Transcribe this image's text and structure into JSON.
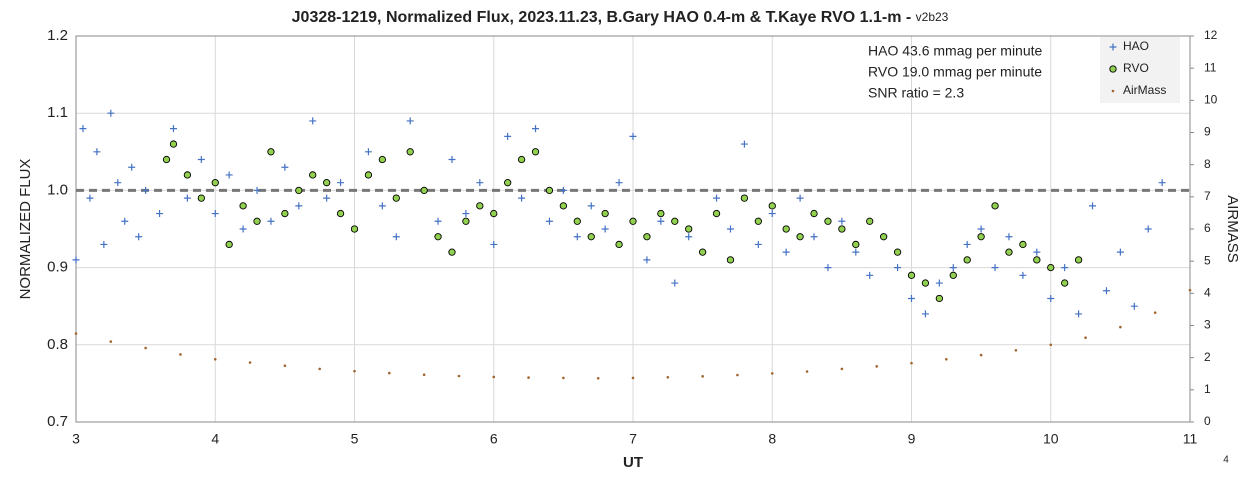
{
  "chart_data": {
    "type": "scatter",
    "title": "J0328-1219, Normalized Flux, 2023.11.23, B.Gary HAO 0.4-m & T.Kaye RVO 1.1-m - ",
    "version": "v2b23",
    "xlabel": "UT",
    "ylabel": "NORMALIZED FLUX",
    "y2label": "AIRMASS",
    "annotations": [
      "HAO 43.6 mmag per minute",
      "RVO 19.0 mmag per minute",
      "SNR ratio = 2.3"
    ],
    "page_label": "4",
    "xlim": [
      3,
      11
    ],
    "xticks": [
      3,
      4,
      5,
      6,
      7,
      8,
      9,
      10,
      11
    ],
    "ylim": [
      0.7,
      1.2
    ],
    "yticks": [
      0.7,
      0.8,
      0.9,
      {
        "value": 1,
        "label": "1.0"
      },
      1.1,
      1.2
    ],
    "y2lim": [
      0,
      12
    ],
    "y2ticks": [
      0,
      1,
      2,
      3,
      4,
      5,
      6,
      7,
      8,
      9,
      10,
      11,
      12
    ],
    "grid": true,
    "reference_line": 1,
    "legend": "upper right",
    "series": [
      {
        "name": "HAO",
        "color": "#4472c4",
        "marker": "plus",
        "x": [
          3.0,
          3.05,
          3.1,
          3.15,
          3.2,
          3.25,
          3.3,
          3.35,
          3.4,
          3.45,
          3.5,
          3.6,
          3.7,
          3.8,
          3.9,
          4.0,
          4.1,
          4.2,
          4.3,
          4.4,
          4.5,
          4.6,
          4.7,
          4.8,
          4.9,
          5.0,
          5.1,
          5.2,
          5.3,
          5.4,
          5.5,
          5.6,
          5.7,
          5.8,
          5.9,
          6.0,
          6.1,
          6.2,
          6.3,
          6.4,
          6.5,
          6.6,
          6.7,
          6.8,
          6.9,
          7.0,
          7.1,
          7.2,
          7.3,
          7.4,
          7.5,
          7.6,
          7.7,
          7.8,
          7.9,
          8.0,
          8.1,
          8.2,
          8.3,
          8.4,
          8.5,
          8.6,
          8.7,
          8.8,
          8.9,
          9.0,
          9.1,
          9.2,
          9.3,
          9.4,
          9.5,
          9.6,
          9.7,
          9.8,
          9.9,
          10.0,
          10.1,
          10.2,
          10.3,
          10.4,
          10.5,
          10.6,
          10.7,
          10.8
        ],
        "values": [
          0.91,
          1.08,
          0.99,
          1.05,
          0.93,
          1.1,
          1.01,
          0.96,
          1.03,
          0.94,
          1.0,
          0.97,
          1.08,
          0.99,
          1.04,
          0.97,
          1.02,
          0.95,
          1.0,
          0.96,
          1.03,
          0.98,
          1.09,
          0.99,
          1.01,
          0.95,
          1.05,
          0.98,
          0.94,
          1.09,
          1.0,
          0.96,
          1.04,
          0.97,
          1.01,
          0.93,
          1.07,
          0.99,
          1.08,
          0.96,
          1.0,
          0.94,
          0.98,
          0.95,
          1.01,
          1.07,
          0.91,
          0.96,
          0.88,
          0.94,
          0.92,
          0.99,
          0.95,
          1.06,
          0.93,
          0.97,
          0.92,
          0.99,
          0.94,
          0.9,
          0.96,
          0.92,
          0.89,
          0.94,
          0.9,
          0.86,
          0.84,
          0.88,
          0.9,
          0.93,
          0.95,
          0.9,
          0.94,
          0.89,
          0.92,
          0.86,
          0.9,
          0.84,
          0.98,
          0.87,
          0.92,
          0.85,
          0.95,
          1.01
        ]
      },
      {
        "name": "RVO",
        "color": "#92d050",
        "marker": "circle",
        "x": [
          3.65,
          3.7,
          3.8,
          3.9,
          4.0,
          4.1,
          4.2,
          4.3,
          4.4,
          4.5,
          4.6,
          4.7,
          4.8,
          4.9,
          5.0,
          5.1,
          5.2,
          5.3,
          5.4,
          5.5,
          5.6,
          5.7,
          5.8,
          5.9,
          6.0,
          6.1,
          6.2,
          6.3,
          6.4,
          6.5,
          6.6,
          6.7,
          6.8,
          6.9,
          7.0,
          7.1,
          7.2,
          7.3,
          7.4,
          7.5,
          7.6,
          7.7,
          7.8,
          7.9,
          8.0,
          8.1,
          8.2,
          8.3,
          8.4,
          8.5,
          8.6,
          8.7,
          8.8,
          8.9,
          9.0,
          9.1,
          9.2,
          9.3,
          9.4,
          9.5,
          9.6,
          9.7,
          9.8,
          9.9,
          10.0,
          10.1,
          10.2
        ],
        "values": [
          1.04,
          1.06,
          1.02,
          0.99,
          1.01,
          0.93,
          0.98,
          0.96,
          1.05,
          0.97,
          1.0,
          1.02,
          1.01,
          0.97,
          0.95,
          1.02,
          1.04,
          0.99,
          1.05,
          1.0,
          0.94,
          0.92,
          0.96,
          0.98,
          0.97,
          1.01,
          1.04,
          1.05,
          1.0,
          0.98,
          0.96,
          0.94,
          0.97,
          0.93,
          0.96,
          0.94,
          0.97,
          0.96,
          0.95,
          0.92,
          0.97,
          0.91,
          0.99,
          0.96,
          0.98,
          0.95,
          0.94,
          0.97,
          0.96,
          0.95,
          0.93,
          0.96,
          0.94,
          0.92,
          0.89,
          0.88,
          0.86,
          0.89,
          0.91,
          0.94,
          0.98,
          0.92,
          0.93,
          0.91,
          0.9,
          0.88,
          0.91
        ]
      },
      {
        "name": "AirMass",
        "color": "#a0642d",
        "marker": "dot",
        "axis": "y2",
        "x": [
          3,
          3.25,
          3.5,
          3.75,
          4,
          4.25,
          4.5,
          4.75,
          5,
          5.25,
          5.5,
          5.75,
          6,
          6.25,
          6.5,
          6.75,
          7,
          7.25,
          7.5,
          7.75,
          8,
          8.25,
          8.5,
          8.75,
          9,
          9.25,
          9.5,
          9.75,
          10,
          10.25,
          10.5,
          10.75,
          11
        ],
        "values": [
          2.75,
          2.5,
          2.3,
          2.1,
          1.95,
          1.85,
          1.75,
          1.65,
          1.58,
          1.52,
          1.47,
          1.43,
          1.4,
          1.38,
          1.37,
          1.36,
          1.37,
          1.39,
          1.42,
          1.46,
          1.51,
          1.57,
          1.65,
          1.73,
          1.83,
          1.95,
          2.08,
          2.23,
          2.4,
          2.62,
          2.95,
          3.4,
          4.1
        ]
      }
    ]
  }
}
